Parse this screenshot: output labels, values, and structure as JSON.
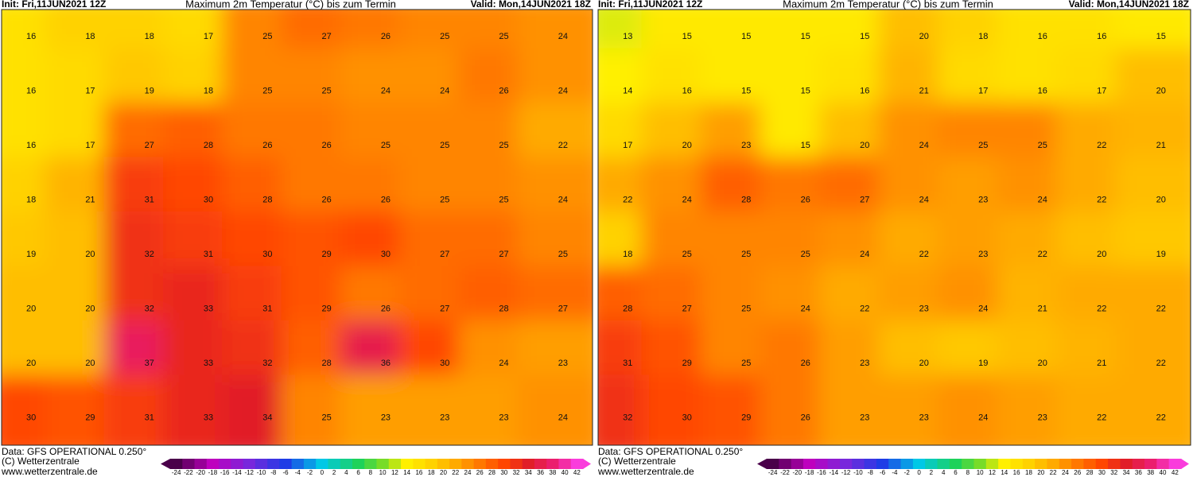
{
  "panels": [
    {
      "init": "Init: Fri,11JUN2021 12Z",
      "title": "Maximum 2m Temperatur (°C) bis zum Termin",
      "valid": "Valid: Mon,14JUN2021 18Z",
      "grid": [
        [
          16,
          18,
          18,
          17,
          25,
          27,
          26,
          25,
          25,
          24
        ],
        [
          16,
          17,
          19,
          18,
          25,
          25,
          24,
          24,
          26,
          24
        ],
        [
          16,
          17,
          27,
          28,
          26,
          26,
          25,
          25,
          25,
          22
        ],
        [
          18,
          21,
          31,
          30,
          28,
          26,
          26,
          25,
          25,
          24
        ],
        [
          19,
          20,
          32,
          31,
          30,
          29,
          30,
          27,
          27,
          25
        ],
        [
          20,
          20,
          32,
          33,
          31,
          29,
          26,
          27,
          28,
          27
        ],
        [
          20,
          20,
          37,
          33,
          32,
          28,
          36,
          30,
          24,
          23
        ],
        [
          30,
          29,
          31,
          33,
          34,
          25,
          23,
          23,
          23,
          24
        ]
      ],
      "source": "Data: GFS OPERATIONAL 0.250°",
      "copyright": "(C) Wetterzentrale",
      "url": "www.wetterzentrale.de",
      "colorbar": [
        -24,
        -22,
        -20,
        -18,
        -16,
        -14,
        -12,
        -10,
        -8,
        -6,
        -4,
        -2,
        0,
        2,
        4,
        6,
        8,
        10,
        12,
        14,
        16,
        18,
        20,
        22,
        24,
        26,
        28,
        30,
        32,
        34,
        36,
        38,
        40,
        42
      ]
    },
    {
      "init": "Init: Fri,11JUN2021 12Z",
      "title": "Maximum 2m Temperatur (°C) bis zum Termin",
      "valid": "Valid: Mon,14JUN2021 18Z",
      "grid": [
        [
          13,
          15,
          15,
          15,
          15,
          20,
          18,
          16,
          16,
          15
        ],
        [
          14,
          16,
          15,
          15,
          16,
          21,
          17,
          16,
          17,
          20
        ],
        [
          17,
          20,
          23,
          15,
          20,
          24,
          25,
          25,
          22,
          21
        ],
        [
          22,
          24,
          28,
          26,
          27,
          24,
          23,
          24,
          22,
          20
        ],
        [
          18,
          25,
          25,
          25,
          24,
          22,
          23,
          22,
          20,
          19
        ],
        [
          28,
          27,
          25,
          24,
          22,
          23,
          24,
          21,
          22,
          22
        ],
        [
          31,
          29,
          25,
          26,
          23,
          20,
          19,
          20,
          21,
          22
        ],
        [
          32,
          30,
          29,
          26,
          23,
          23,
          24,
          23,
          22,
          22
        ]
      ],
      "source": "Data: GFS OPERATIONAL 0.250°",
      "copyright": "(C) Wetterzentrale",
      "url": "www.wetterzentrale.de",
      "colorbar": [
        -24,
        -22,
        -20,
        -18,
        -16,
        -14,
        -12,
        -10,
        -8,
        -6,
        -4,
        -2,
        0,
        2,
        4,
        6,
        8,
        10,
        12,
        14,
        16,
        18,
        20,
        22,
        24,
        26,
        28,
        30,
        32,
        34,
        36,
        38,
        40,
        42
      ]
    }
  ]
}
